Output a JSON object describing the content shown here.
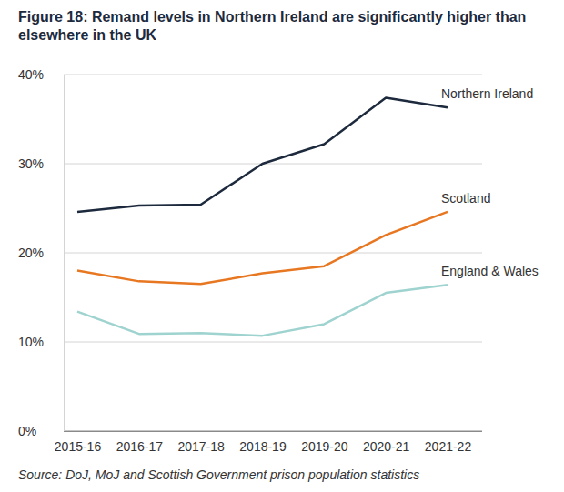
{
  "chart_data": {
    "type": "line",
    "title": "Figure 18: Remand levels in Northern Ireland are significantly higher than elsewhere in the UK",
    "source": "Source: DoJ, MoJ and Scottish Government prison population statistics",
    "categories": [
      "2015-16",
      "2016-17",
      "2017-18",
      "2018-19",
      "2019-20",
      "2020-21",
      "2021-22"
    ],
    "series": [
      {
        "name": "Northern Ireland",
        "color": "#1d2a3d",
        "values": [
          24.6,
          25.3,
          25.4,
          30.0,
          32.2,
          37.4,
          36.3
        ]
      },
      {
        "name": "Scotland",
        "color": "#e87722",
        "values": [
          18.0,
          16.8,
          16.5,
          17.7,
          18.5,
          22.0,
          24.6
        ]
      },
      {
        "name": "England & Wales",
        "color": "#9fd3cf",
        "values": [
          13.4,
          10.9,
          11.0,
          10.7,
          12.0,
          15.5,
          16.4
        ]
      }
    ],
    "ylim": [
      0,
      40
    ],
    "yticks": [
      {
        "value": 0,
        "label": "0%"
      },
      {
        "value": 10,
        "label": "10%"
      },
      {
        "value": 20,
        "label": "20%"
      },
      {
        "value": 30,
        "label": "30%"
      },
      {
        "value": 40,
        "label": "40%"
      }
    ],
    "grid": true
  }
}
